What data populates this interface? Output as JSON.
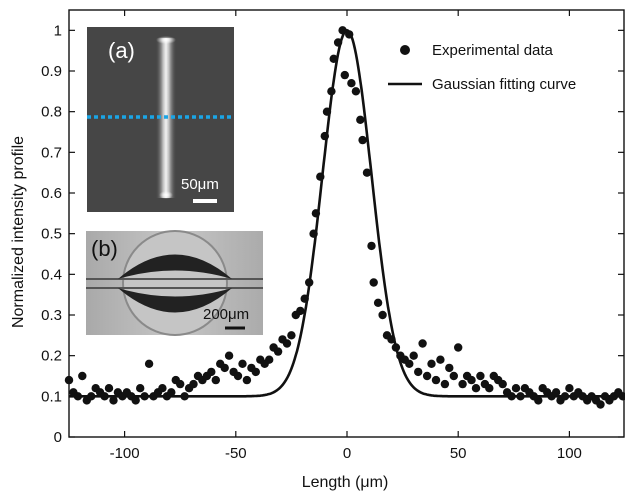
{
  "chart_data": {
    "type": "scatter",
    "xlabel": "Length (μm)",
    "ylabel": "Normalized intensity profile",
    "xlim": [
      -125,
      125
    ],
    "ylim": [
      0,
      1.05
    ],
    "xticks": [
      -100,
      -50,
      0,
      50,
      100
    ],
    "xtick_labels": [
      "-100",
      "-50",
      "0",
      "50",
      "100"
    ],
    "yticks": [
      0,
      0.1,
      0.2,
      0.3,
      0.4,
      0.5,
      0.6,
      0.7,
      0.8,
      0.9,
      1
    ],
    "ytick_labels": [
      "0",
      "0.1",
      "0.2",
      "0.3",
      "0.4",
      "0.5",
      "0.6",
      "0.7",
      "0.8",
      "0.9",
      "1"
    ],
    "grid": false,
    "legend_position": "top-right",
    "series": [
      {
        "name": "Experimental data",
        "kind": "scatter",
        "color": "#111111",
        "x": [
          -125,
          -123,
          -121,
          -119,
          -117,
          -115,
          -113,
          -111,
          -109,
          -107,
          -105,
          -103,
          -101,
          -99,
          -97,
          -95,
          -93,
          -91,
          -89,
          -87,
          -85,
          -83,
          -81,
          -79,
          -77,
          -75,
          -73,
          -71,
          -69,
          -67,
          -65,
          -63,
          -61,
          -59,
          -57,
          -55,
          -53,
          -51,
          -49,
          -47,
          -45,
          -43,
          -41,
          -39,
          -37,
          -35,
          -33,
          -31,
          -29,
          -27,
          -25,
          -23,
          -21,
          -19,
          -17,
          -15,
          -14,
          -12,
          -10,
          -9,
          -7,
          -6,
          -4,
          -2,
          -1,
          1,
          2,
          4,
          6,
          7,
          9,
          11,
          12,
          14,
          16,
          18,
          20,
          22,
          24,
          26,
          28,
          30,
          32,
          34,
          36,
          38,
          40,
          42,
          44,
          46,
          48,
          50,
          52,
          54,
          56,
          58,
          60,
          62,
          64,
          66,
          68,
          70,
          72,
          74,
          76,
          78,
          80,
          82,
          84,
          86,
          88,
          90,
          92,
          94,
          96,
          98,
          100,
          102,
          104,
          106,
          108,
          110,
          112,
          114,
          116,
          118,
          120,
          122,
          124
        ],
        "y": [
          0.14,
          0.11,
          0.1,
          0.15,
          0.09,
          0.1,
          0.12,
          0.11,
          0.1,
          0.12,
          0.09,
          0.11,
          0.1,
          0.11,
          0.1,
          0.09,
          0.12,
          0.1,
          0.18,
          0.1,
          0.11,
          0.12,
          0.1,
          0.11,
          0.14,
          0.13,
          0.1,
          0.12,
          0.13,
          0.15,
          0.14,
          0.15,
          0.16,
          0.14,
          0.18,
          0.17,
          0.2,
          0.16,
          0.15,
          0.18,
          0.14,
          0.17,
          0.16,
          0.19,
          0.18,
          0.19,
          0.22,
          0.21,
          0.24,
          0.23,
          0.25,
          0.3,
          0.31,
          0.34,
          0.38,
          0.5,
          0.55,
          0.64,
          0.74,
          0.8,
          0.85,
          0.93,
          0.97,
          1.0,
          0.89,
          0.99,
          0.87,
          0.85,
          0.78,
          0.73,
          0.65,
          0.47,
          0.38,
          0.33,
          0.3,
          0.25,
          0.24,
          0.22,
          0.2,
          0.19,
          0.18,
          0.2,
          0.16,
          0.23,
          0.15,
          0.18,
          0.14,
          0.19,
          0.13,
          0.17,
          0.15,
          0.22,
          0.13,
          0.15,
          0.14,
          0.12,
          0.15,
          0.13,
          0.12,
          0.15,
          0.14,
          0.13,
          0.11,
          0.1,
          0.12,
          0.1,
          0.12,
          0.11,
          0.1,
          0.09,
          0.12,
          0.11,
          0.1,
          0.11,
          0.09,
          0.1,
          0.12,
          0.1,
          0.11,
          0.1,
          0.09,
          0.1,
          0.09,
          0.08,
          0.1,
          0.09,
          0.1,
          0.11,
          0.1
        ]
      },
      {
        "name": "Gaussian fitting curve",
        "kind": "line",
        "color": "#111111",
        "baseline": 0.1,
        "amplitude": 0.9,
        "center": 0,
        "sigma": 11
      }
    ],
    "insets": [
      {
        "label": "(a)",
        "scale_bar": "50μm",
        "line_color": "#1aa5e6"
      },
      {
        "label": "(b)",
        "scale_bar": "200μm"
      }
    ]
  }
}
